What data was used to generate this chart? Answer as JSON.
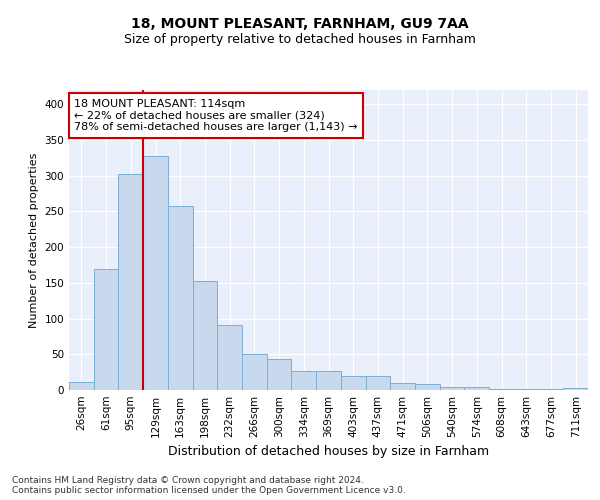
{
  "title1": "18, MOUNT PLEASANT, FARNHAM, GU9 7AA",
  "title2": "Size of property relative to detached houses in Farnham",
  "xlabel": "Distribution of detached houses by size in Farnham",
  "ylabel": "Number of detached properties",
  "categories": [
    "26sqm",
    "61sqm",
    "95sqm",
    "129sqm",
    "163sqm",
    "198sqm",
    "232sqm",
    "266sqm",
    "300sqm",
    "334sqm",
    "369sqm",
    "403sqm",
    "437sqm",
    "471sqm",
    "506sqm",
    "540sqm",
    "574sqm",
    "608sqm",
    "643sqm",
    "677sqm",
    "711sqm"
  ],
  "values": [
    11,
    170,
    302,
    328,
    258,
    152,
    91,
    50,
    43,
    27,
    27,
    20,
    20,
    10,
    9,
    4,
    4,
    1,
    2,
    1,
    3
  ],
  "bar_color": "#c9d9ed",
  "bar_edge_color": "#7bafd4",
  "vline_color": "#cc0000",
  "vline_pos": 2.5,
  "annotation_text": "18 MOUNT PLEASANT: 114sqm\n← 22% of detached houses are smaller (324)\n78% of semi-detached houses are larger (1,143) →",
  "annotation_box_facecolor": "#ffffff",
  "annotation_box_edgecolor": "#cc0000",
  "ylim": [
    0,
    420
  ],
  "yticks": [
    0,
    50,
    100,
    150,
    200,
    250,
    300,
    350,
    400
  ],
  "footer": "Contains HM Land Registry data © Crown copyright and database right 2024.\nContains public sector information licensed under the Open Government Licence v3.0.",
  "bg_color": "#eaf0fb",
  "fig_bg_color": "#ffffff",
  "grid_color": "#ffffff",
  "title1_fontsize": 10,
  "title2_fontsize": 9,
  "ylabel_fontsize": 8,
  "xlabel_fontsize": 9,
  "tick_fontsize": 7.5,
  "footer_fontsize": 6.5,
  "ann_fontsize": 8
}
